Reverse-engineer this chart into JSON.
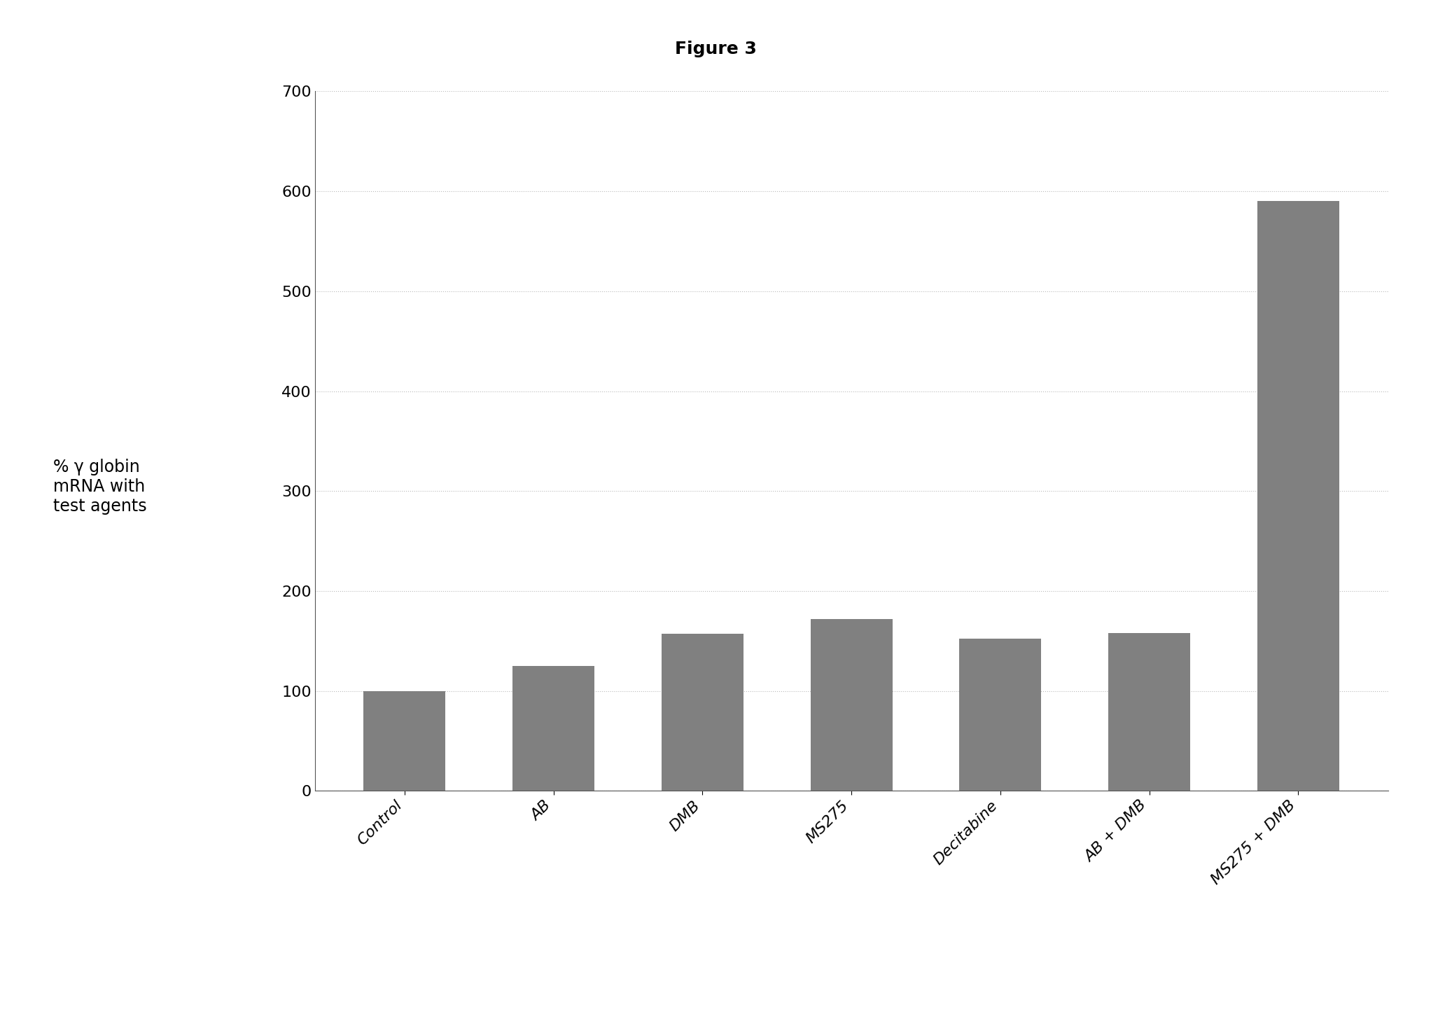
{
  "title": "Figure 3",
  "ylabel_line1": "% γ globin",
  "ylabel_line2": "mRNA with",
  "ylabel_line3": "test agents",
  "categories": [
    "Control",
    "AB",
    "DMB",
    "MS275",
    "Decitabine",
    "AB + DMB",
    "MS275 + DMB"
  ],
  "values": [
    100,
    125,
    157,
    172,
    152,
    158,
    590
  ],
  "bar_color": "#808080",
  "ylim": [
    0,
    700
  ],
  "yticks": [
    0,
    100,
    200,
    300,
    400,
    500,
    600,
    700
  ],
  "background_color": "#ffffff",
  "title_fontsize": 18,
  "ylabel_fontsize": 17,
  "tick_fontsize": 16,
  "xtick_fontsize": 16,
  "bar_width": 0.55,
  "grid_color": "#bbbbbb",
  "grid_linestyle": ":"
}
